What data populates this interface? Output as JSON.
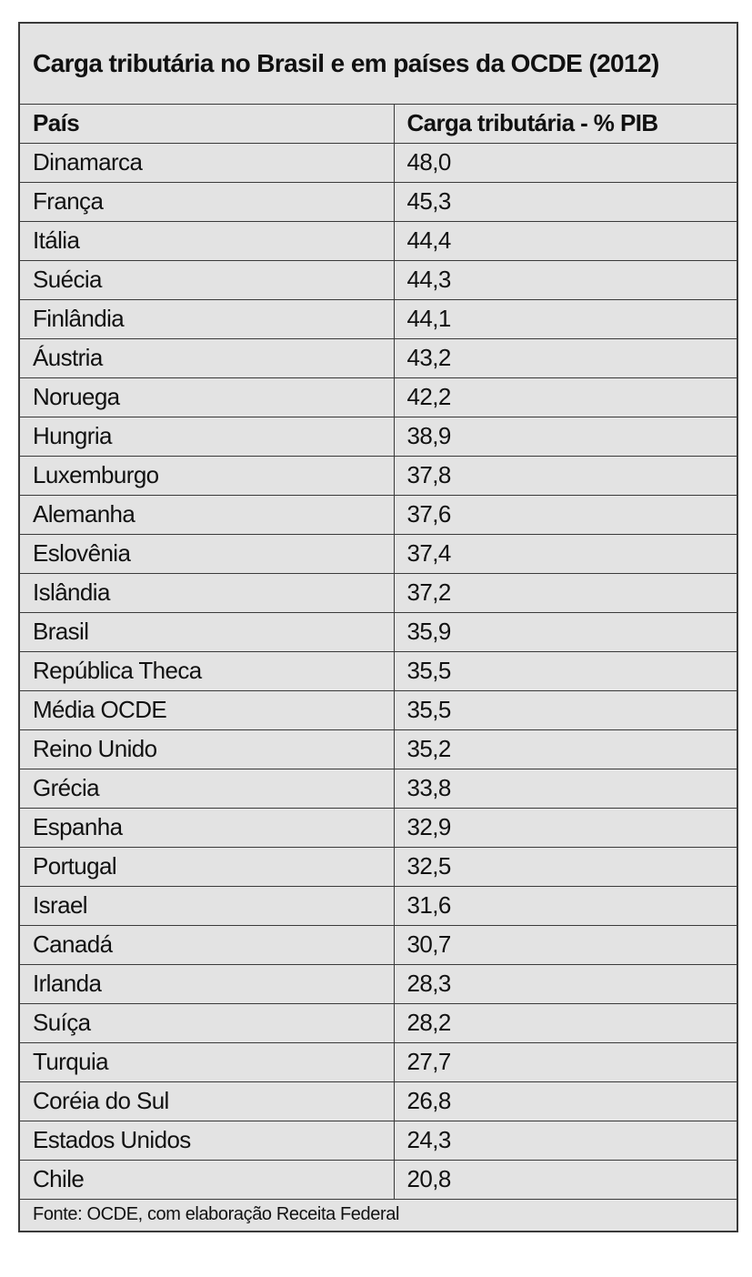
{
  "table": {
    "title": "Carga tributária no Brasil e em países da OCDE (2012)",
    "header": [
      "País",
      "Carga tributária - % PIB"
    ],
    "rows": [
      [
        "Dinamarca",
        "48,0"
      ],
      [
        "França",
        "45,3"
      ],
      [
        "Itália",
        "44,4"
      ],
      [
        "Suécia",
        "44,3"
      ],
      [
        "Finlândia",
        "44,1"
      ],
      [
        "Áustria",
        "43,2"
      ],
      [
        "Noruega",
        "42,2"
      ],
      [
        "Hungria",
        "38,9"
      ],
      [
        "Luxemburgo",
        "37,8"
      ],
      [
        "Alemanha",
        "37,6"
      ],
      [
        "Eslovênia",
        "37,4"
      ],
      [
        "Islândia",
        "37,2"
      ],
      [
        "Brasil",
        "35,9"
      ],
      [
        "República Theca",
        "35,5"
      ],
      [
        "Média OCDE",
        "35,5"
      ],
      [
        "Reino Unido",
        "35,2"
      ],
      [
        "Grécia",
        "33,8"
      ],
      [
        "Espanha",
        "32,9"
      ],
      [
        "Portugal",
        "32,5"
      ],
      [
        "Israel",
        "31,6"
      ],
      [
        "Canadá",
        "30,7"
      ],
      [
        "Irlanda",
        "28,3"
      ],
      [
        "Suíça",
        "28,2"
      ],
      [
        "Turquia",
        "27,7"
      ],
      [
        "Coréia do Sul",
        "26,8"
      ],
      [
        "Estados Unidos",
        "24,3"
      ],
      [
        "Chile",
        "20,8"
      ]
    ],
    "footer": "Fonte: OCDE, com elaboração Receita Federal"
  }
}
